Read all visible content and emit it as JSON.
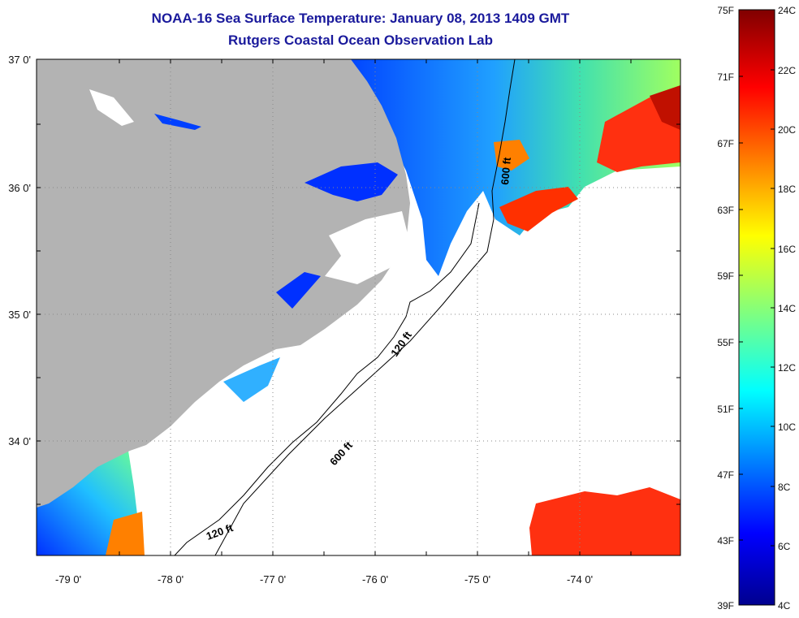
{
  "header": {
    "title": "NOAA-16 Sea Surface Temperature:  January 08, 2013 1409 GMT",
    "subtitle": "Rutgers Coastal Ocean Observation Lab"
  },
  "map": {
    "lat_ticks": [
      "37 0'",
      "36 0'",
      "35 0'",
      "34 0'"
    ],
    "lon_ticks": [
      "-79 0'",
      "-78 0'",
      "-77 0'",
      "-76 0'",
      "-75 0'",
      "-74 0'"
    ],
    "isobath_labels": [
      "600 ft",
      "120 ft",
      "600 ft",
      "120 ft"
    ],
    "colors": {
      "land": "#b3b3b3",
      "cloud": "#ffffff"
    }
  },
  "colorbar": {
    "fahrenheit": [
      "75F",
      "71F",
      "67F",
      "63F",
      "59F",
      "55F",
      "51F",
      "47F",
      "43F",
      "39F"
    ],
    "celsius": [
      "24C",
      "22C",
      "20C",
      "18C",
      "16C",
      "14C",
      "12C",
      "10C",
      "8C",
      "6C",
      "4C"
    ]
  }
}
